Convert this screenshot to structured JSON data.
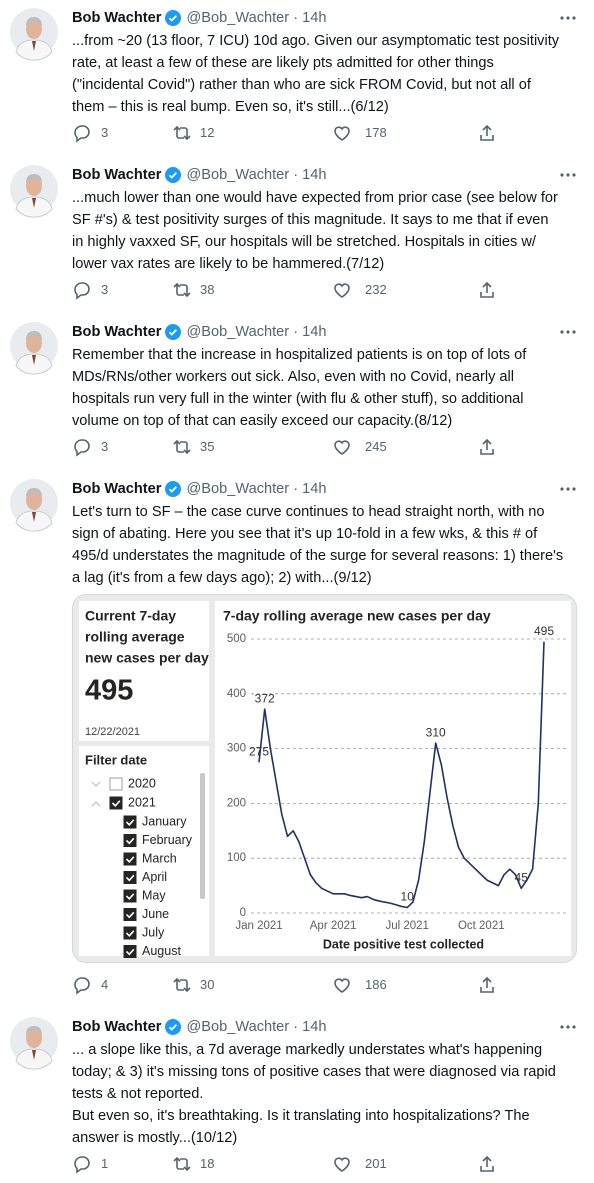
{
  "tweets": [
    {
      "author": "Bob Wachter",
      "meta": "@Bob_Wachter · 14h",
      "text": [
        "...from ~20 (13 floor, 7 ICU) 10d ago. Given our asymptomatic test positivity",
        "rate, at least a few of these are likely pts admitted for other things",
        "(\"incidental Covid\") rather than who are sick FROM Covid, but not all of",
        "them – this is real bump. Even so, it's still...(6/12)"
      ],
      "replies": 3,
      "retweets": 12,
      "likes": 178
    },
    {
      "author": "Bob Wachter",
      "meta": "@Bob_Wachter · 14h",
      "text": [
        "...much lower than one would have expected from prior case (see below for",
        "SF #'s) & test positivity surges of this magnitude. It says to me that if even",
        "in highly vaxxed SF, our hospitals will be stretched. Hospitals in cities w/",
        "lower vax rates are likely to be hammered.(7/12)"
      ],
      "replies": 3,
      "retweets": 38,
      "likes": 232
    },
    {
      "author": "Bob Wachter",
      "meta": "@Bob_Wachter · 14h",
      "text": [
        "Remember that the increase in hospitalized patients is on top of lots of",
        "MDs/RNs/other workers out sick. Also, even with no Covid, nearly all",
        "hospitals run very full in the winter (with flu & other stuff), so additional",
        "volume on top of that can easily exceed our capacity.(8/12)"
      ],
      "replies": 3,
      "retweets": 35,
      "likes": 245
    },
    {
      "author": "Bob Wachter",
      "meta": "@Bob_Wachter · 14h",
      "text": [
        "Let's turn to SF – the case curve continues to head straight north, with no",
        "sign of abating. Here you see that it's up 10-fold in a few wks, & this # of",
        "495/d understates the magnitude of the surge for several reasons: 1) there's",
        "a lag (it's from a few days ago); 2) with...(9/12)"
      ],
      "replies": 4,
      "retweets": 30,
      "likes": 186,
      "media": {
        "kpi": {
          "title": [
            "Current 7-day",
            "rolling average",
            "new cases per day"
          ],
          "value": 495,
          "date": "12/22/2021"
        },
        "filter": {
          "title": "Filter date",
          "years": [
            {
              "label": "2020",
              "checked": false
            },
            {
              "label": "2021",
              "checked": true,
              "months": [
                {
                  "label": "January",
                  "checked": true
                },
                {
                  "label": "February",
                  "checked": true
                },
                {
                  "label": "March",
                  "checked": true
                },
                {
                  "label": "April",
                  "checked": true
                },
                {
                  "label": "May",
                  "checked": true
                },
                {
                  "label": "June",
                  "checked": true
                },
                {
                  "label": "July",
                  "checked": true
                },
                {
                  "label": "August",
                  "checked": true
                }
              ]
            }
          ]
        },
        "chart": {
          "type": "line",
          "title": "7-day rolling average new cases per day",
          "x_label": "Date positive test collected",
          "color": "#1f3260",
          "grid": true,
          "values": [
            275,
            372,
            300,
            240,
            180,
            140,
            150,
            130,
            100,
            70,
            55,
            45,
            40,
            35,
            35,
            35,
            32,
            30,
            28,
            30,
            25,
            22,
            20,
            18,
            15,
            12,
            10,
            20,
            60,
            130,
            220,
            310,
            270,
            210,
            160,
            120,
            100,
            90,
            80,
            70,
            60,
            55,
            50,
            70,
            80,
            70,
            45,
            60,
            80,
            200,
            495
          ],
          "point_labels": [
            275,
            372,
            null,
            null,
            null,
            null,
            null,
            null,
            null,
            null,
            null,
            null,
            null,
            null,
            null,
            null,
            null,
            null,
            null,
            null,
            null,
            null,
            null,
            null,
            null,
            null,
            10,
            null,
            null,
            null,
            null,
            310,
            null,
            null,
            null,
            null,
            null,
            null,
            null,
            null,
            null,
            null,
            null,
            null,
            null,
            null,
            45,
            null,
            null,
            null,
            495
          ],
          "xlim": [
            0,
            50
          ],
          "xticks": [
            {
              "value": 0,
              "label": "Jan 2021"
            },
            {
              "value": 13,
              "label": "Apr 2021"
            },
            {
              "value": 26,
              "label": "Jul 2021"
            },
            {
              "value": 39,
              "label": "Oct 2021"
            }
          ],
          "ylim": [
            0,
            500
          ],
          "yticks": [
            0,
            100,
            200,
            300,
            400,
            500
          ]
        }
      }
    },
    {
      "author": "Bob Wachter",
      "meta": "@Bob_Wachter · 14h",
      "text": [
        "... a slope like this, a 7d average markedly understates what's happening",
        "today; & 3) it's missing tons of positive cases that were diagnosed via rapid",
        "tests & not reported.",
        "But even so, it's breathtaking. Is it translating into hospitalizations? The",
        "answer is mostly...(10/12)"
      ],
      "replies": 1,
      "retweets": 18,
      "likes": 201
    }
  ]
}
